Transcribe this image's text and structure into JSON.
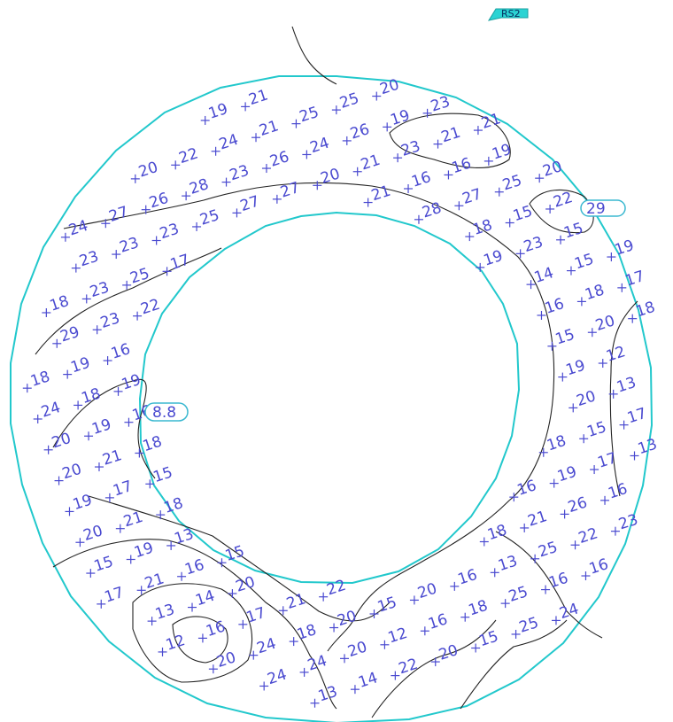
{
  "badge": {
    "label": "RS2",
    "color": "#2bd3d3"
  },
  "ring_color": "#22c8cc",
  "label_color": "#4a4ad0",
  "center_tags": [
    {
      "id": "tag-center",
      "text": "8.8"
    },
    {
      "id": "tag-right",
      "text": "29"
    }
  ],
  "grid_values": [
    "19",
    "21",
    "20",
    "22",
    "24",
    "21",
    "25",
    "25",
    "20",
    "24",
    "27",
    "26",
    "28",
    "23",
    "26",
    "24",
    "26",
    "19",
    "23",
    "23",
    "23",
    "23",
    "25",
    "27",
    "27",
    "20",
    "21",
    "23",
    "21",
    "21",
    "18",
    "23",
    "25",
    "17",
    "21",
    "16",
    "16",
    "19",
    "29",
    "23",
    "22",
    "28",
    "27",
    "25",
    "20",
    "18",
    "19",
    "16",
    "18",
    "15",
    "22",
    "24",
    "18",
    "19",
    "19",
    "23",
    "15",
    "20",
    "19",
    "16",
    "14",
    "15",
    "19",
    "20",
    "21",
    "18",
    "16",
    "18",
    "17",
    "19",
    "17",
    "15",
    "15",
    "20",
    "18",
    "20",
    "21",
    "18",
    "19",
    "12",
    "15",
    "19",
    "13",
    "20",
    "13",
    "17",
    "21",
    "16",
    "15",
    "18",
    "15",
    "17",
    "13",
    "14",
    "20",
    "16",
    "19",
    "17",
    "13",
    "12",
    "16",
    "17",
    "21",
    "22",
    "18",
    "21",
    "26",
    "16",
    "20",
    "24",
    "18",
    "20",
    "15",
    "20",
    "16",
    "13",
    "25",
    "22",
    "23",
    "24",
    "24",
    "20",
    "12",
    "16",
    "18",
    "25",
    "16",
    "16",
    "13",
    "14",
    "22",
    "20",
    "15",
    "25",
    "24",
    "23",
    "19",
    "22",
    "25",
    "26",
    "24",
    "23",
    "26",
    "21",
    "26",
    "24",
    "25",
    "22",
    "17",
    "17",
    "18",
    "19",
    "25",
    "21",
    "22",
    "19",
    "25",
    "21"
  ]
}
